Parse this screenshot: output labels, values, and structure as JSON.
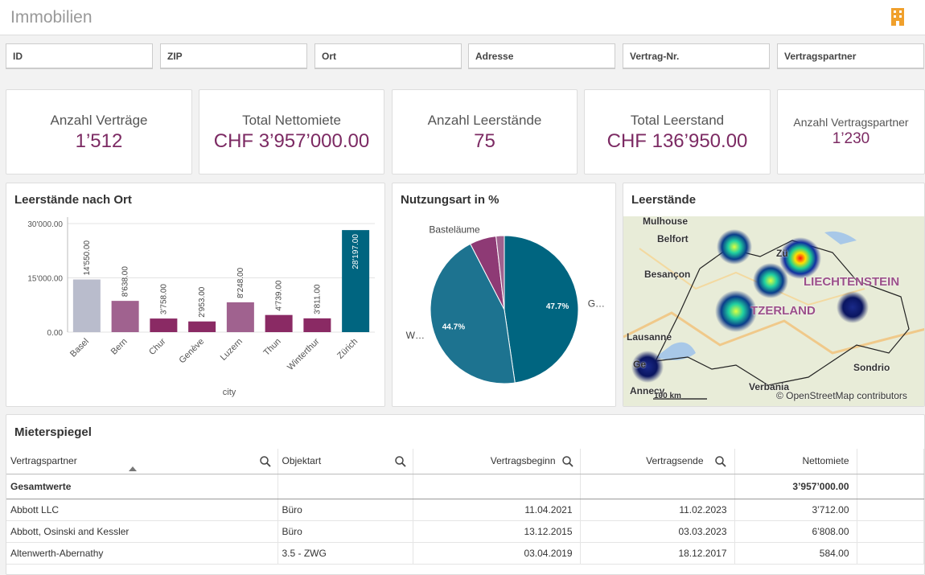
{
  "header": {
    "title": "Immobilien"
  },
  "filters": [
    "ID",
    "ZIP",
    "Ort",
    "Adresse",
    "Vertrag-Nr.",
    "Vertragspartner"
  ],
  "kpis": [
    {
      "label": "Anzahl Verträge",
      "value": "1’512"
    },
    {
      "label": "Total Nettomiete",
      "value": "CHF 3’957’000.00"
    },
    {
      "label": "Anzahl Leerstände",
      "value": "75"
    },
    {
      "label": "Total Leerstand",
      "value": "CHF 136’950.00"
    },
    {
      "label": "Anzahl Vertragspartner",
      "value": "1’230"
    }
  ],
  "chart_data": [
    {
      "type": "bar",
      "title": "Leerstände nach Ort",
      "x_label": "city",
      "categories": [
        "Basel",
        "Bern",
        "Chur",
        "Genève",
        "Luzern",
        "Thun",
        "Winterthur",
        "Zürich"
      ],
      "values": [
        14550,
        8638,
        3758,
        2953,
        8248,
        4739,
        3811,
        28197
      ],
      "value_labels": [
        "14'550.00",
        "8'638.00",
        "3'758.00",
        "2'953.00",
        "8'248.00",
        "4'739.00",
        "3'811.00",
        "28'197.00"
      ],
      "colors": [
        "#b9bccc",
        "#a0628f",
        "#8a2a64",
        "#8a2a64",
        "#a0628f",
        "#8a2a64",
        "#8a2a64",
        "#006580"
      ],
      "ylim": [
        0,
        30000
      ],
      "yticks": [
        {
          "value": 0,
          "label": "0.00"
        },
        {
          "value": 15000,
          "label": "15'000.00"
        },
        {
          "value": 30000,
          "label": "30'000.00"
        }
      ],
      "grid": true
    },
    {
      "type": "pie",
      "title": "Nutzungsart in %",
      "categories": [
        "G…",
        "W…",
        "Basteläume",
        null
      ],
      "values": [
        47.7,
        44.7,
        5.8,
        1.8
      ],
      "value_labels": [
        "47.7%",
        "44.7%",
        null,
        null
      ],
      "colors": [
        "#006580",
        "#1d7390",
        "#8e3a75",
        "#a0628f"
      ]
    }
  ],
  "map": {
    "title": "Leerstände",
    "labels": [
      "Mulhouse",
      "Belfort",
      "Besançon",
      "LIECHTENSTEIN",
      "TZERLAND",
      "Lausanne",
      "Annecy",
      "Verbania",
      "Sondrio",
      "Zü",
      "Ge",
      "100 km",
      "© OpenStreetMap contributors"
    ]
  },
  "table": {
    "title": "Mieterspiegel",
    "columns": [
      "Vertragspartner",
      "Objektart",
      "Vertragsbeginn",
      "Vertragsende",
      "Nettomiete"
    ],
    "totals": {
      "label": "Gesamtwerte",
      "Nettomiete": "3’957’000.00"
    },
    "rows": [
      [
        "Abbott LLC",
        "Büro",
        "11.04.2021",
        "11.02.2023",
        "3’712.00"
      ],
      [
        "Abbott, Osinski and Kessler",
        "Büro",
        "13.12.2015",
        "03.03.2023",
        "6’808.00"
      ],
      [
        "Altenwerth-Abernathy",
        "3.5 - ZWG",
        "03.04.2019",
        "18.12.2017",
        "584.00"
      ]
    ]
  }
}
